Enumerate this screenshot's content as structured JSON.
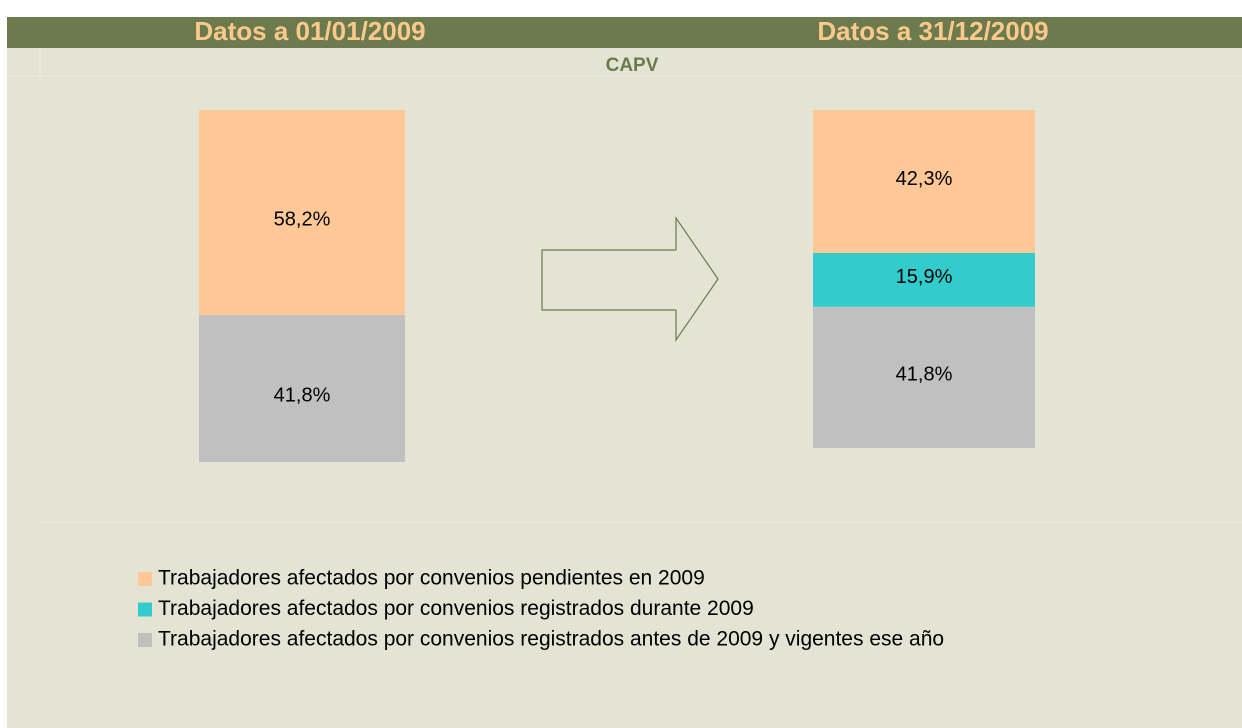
{
  "chart_data": {
    "type": "stacked_bar",
    "title": "CAPV",
    "categories": [
      "Datos a 01/01/2009",
      "Datos a 31/12/2009"
    ],
    "series": [
      {
        "name": "Trabajadores afectados por convenios pendientes en 2009",
        "color": "#ffc896",
        "values": [
          58.2,
          42.3
        ],
        "value_labels": [
          "58,2%",
          "42,3%"
        ]
      },
      {
        "name": "Trabajadores afectados por convenios registrados durante 2009",
        "color": "#33cccc",
        "values": [
          null,
          15.9
        ],
        "value_labels": [
          null,
          "15,9%"
        ]
      },
      {
        "name": "Trabajadores afectados por convenios registrados antes de 2009 y vigentes ese año",
        "color": "#c0c0c0",
        "values": [
          41.8,
          41.8
        ],
        "value_labels": [
          "41,8%",
          "41,8%"
        ]
      }
    ]
  }
}
